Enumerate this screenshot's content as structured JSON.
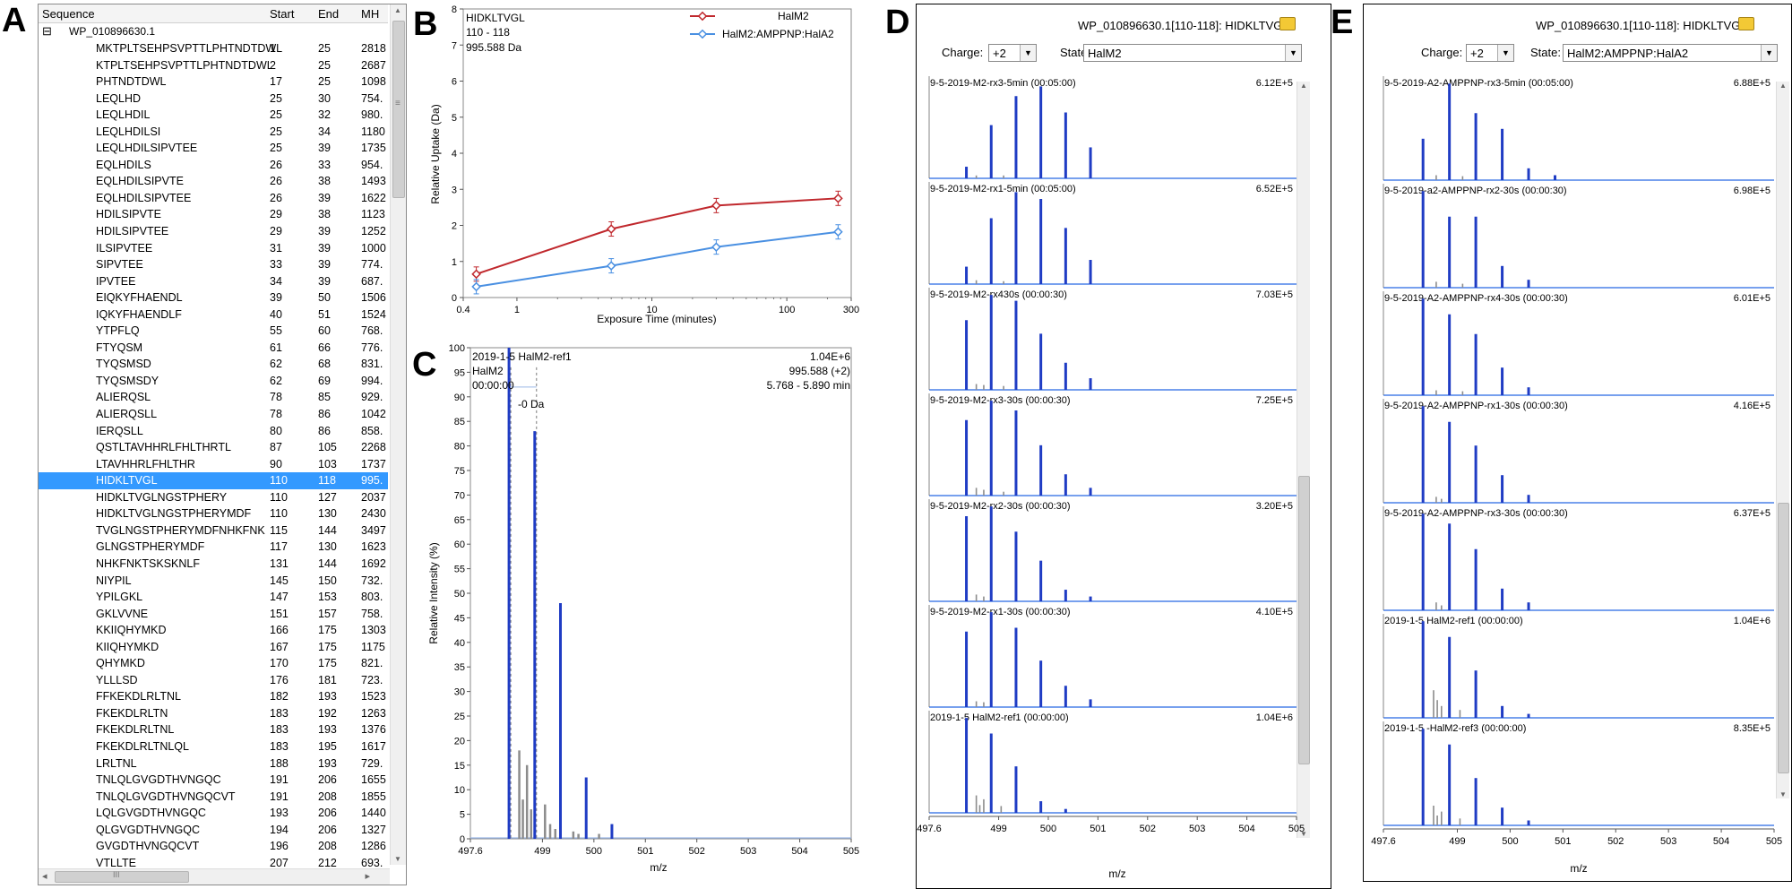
{
  "panel_labels": {
    "a": "A",
    "b": "B",
    "c": "C",
    "d": "D",
    "e": "E"
  },
  "panelA": {
    "columns": [
      "Sequence",
      "Start",
      "End",
      "MH"
    ],
    "root_expander": "⊟",
    "root": "WP_010896630.1",
    "scroll_up": "▲",
    "scroll_down": "▼",
    "scroll_left": "◂",
    "scroll_right": "▸",
    "grip": "≡",
    "grip_h": "III",
    "rows": [
      [
        "MKTPLTSEHPSVPTTLPHTNDTDWL",
        "1",
        "25",
        "2818"
      ],
      [
        "KTPLTSEHPSVPTTLPHTNDTDWL",
        "2",
        "25",
        "2687"
      ],
      [
        "PHTNDTDWL",
        "17",
        "25",
        "1098"
      ],
      [
        "LEQLHD",
        "25",
        "30",
        "754."
      ],
      [
        "LEQLHDIL",
        "25",
        "32",
        "980."
      ],
      [
        "LEQLHDILSI",
        "25",
        "34",
        "1180"
      ],
      [
        "LEQLHDILSIPVTEE",
        "25",
        "39",
        "1735"
      ],
      [
        "EQLHDILS",
        "26",
        "33",
        "954."
      ],
      [
        "EQLHDILSIPVTE",
        "26",
        "38",
        "1493"
      ],
      [
        "EQLHDILSIPVTEE",
        "26",
        "39",
        "1622"
      ],
      [
        "HDILSIPVTE",
        "29",
        "38",
        "1123"
      ],
      [
        "HDILSIPVTEE",
        "29",
        "39",
        "1252"
      ],
      [
        "ILSIPVTEE",
        "31",
        "39",
        "1000"
      ],
      [
        "SIPVTEE",
        "33",
        "39",
        "774."
      ],
      [
        "IPVTEE",
        "34",
        "39",
        "687."
      ],
      [
        "EIQKYFHAENDL",
        "39",
        "50",
        "1506"
      ],
      [
        "IQKYFHAENDLF",
        "40",
        "51",
        "1524"
      ],
      [
        "YTPFLQ",
        "55",
        "60",
        "768."
      ],
      [
        "FTYQSM",
        "61",
        "66",
        "776."
      ],
      [
        "TYQSMSD",
        "62",
        "68",
        "831."
      ],
      [
        "TYQSMSDY",
        "62",
        "69",
        "994."
      ],
      [
        "ALIERQSL",
        "78",
        "85",
        "929."
      ],
      [
        "ALIERQSLL",
        "78",
        "86",
        "1042"
      ],
      [
        "IERQSLL",
        "80",
        "86",
        "858."
      ],
      [
        "QSTLTAVHHRLFHLTHRTL",
        "87",
        "105",
        "2268"
      ],
      [
        "LTAVHHRLFHLTHR",
        "90",
        "103",
        "1737"
      ],
      [
        "HIDKLTVGL",
        "110",
        "118",
        "995."
      ],
      [
        "HIDKLTVGLNGSTPHERY",
        "110",
        "127",
        "2037"
      ],
      [
        "HIDKLTVGLNGSTPHERYMDF",
        "110",
        "130",
        "2430"
      ],
      [
        "TVGLNGSTPHERYMDFNHKFNK",
        "115",
        "144",
        "3497"
      ],
      [
        "GLNGSTPHERYMDF",
        "117",
        "130",
        "1623"
      ],
      [
        "NHKFNKTSKSKNLF",
        "131",
        "144",
        "1692"
      ],
      [
        "NIYPIL",
        "145",
        "150",
        "732."
      ],
      [
        "YPILGKL",
        "147",
        "153",
        "803."
      ],
      [
        "GKLVVNE",
        "151",
        "157",
        "758."
      ],
      [
        "KKIIQHYMKD",
        "166",
        "175",
        "1303"
      ],
      [
        "KIIQHYMKD",
        "167",
        "175",
        "1175"
      ],
      [
        "QHYMKD",
        "170",
        "175",
        "821."
      ],
      [
        "YLLLSD",
        "176",
        "181",
        "723."
      ],
      [
        "FFKEKDLRLTNL",
        "182",
        "193",
        "1523"
      ],
      [
        "FKEKDLRLTN",
        "183",
        "192",
        "1263"
      ],
      [
        "FKEKDLRLTNL",
        "183",
        "193",
        "1376"
      ],
      [
        "FKEKDLRLTNLQL",
        "183",
        "195",
        "1617"
      ],
      [
        "LRLTNL",
        "188",
        "193",
        "729."
      ],
      [
        "TNLQLGVGDTHVNGQC",
        "191",
        "206",
        "1655"
      ],
      [
        "TNLQLGVGDTHVNGQCVT",
        "191",
        "208",
        "1855"
      ],
      [
        "LQLGVGDTHVNGQC",
        "193",
        "206",
        "1440"
      ],
      [
        "QLGVGDTHVNGQC",
        "194",
        "206",
        "1327"
      ],
      [
        "GVGDTHVNGQCVT",
        "196",
        "208",
        "1286"
      ],
      [
        "VTLLTE",
        "207",
        "212",
        "693."
      ]
    ],
    "selected_row_index": 26
  },
  "panelB": {
    "peptide": "HIDKLTVGL",
    "range": "110 - 118",
    "mass": "995.588 Da",
    "xlabel": "Exposure Time (minutes)",
    "ylabel": "Relative Uptake (Da)"
  },
  "panelC": {
    "title": "2019-1-5 HalM2-ref1",
    "state": "HalM2",
    "time": "00:00:00",
    "max_intensity": "1.04E+6",
    "mz_charge": "995.588 (+2)",
    "rt_range": "5.768 - 5.890 min",
    "shift_label": "-0 Da",
    "xlabel": "m/z",
    "ylabel": "Relative Intensity (%)"
  },
  "panelD": {
    "header": "WP_010896630.1[110-118]: HIDKLTVGL",
    "charge_label": "Charge:",
    "charge_value": "+2",
    "state_label": "State:",
    "state_value": "HalM2",
    "xlabel": "m/z",
    "xticks": [
      "497.6",
      "499",
      "500",
      "501",
      "502",
      "503",
      "504",
      "505"
    ],
    "traces": [
      {
        "label": "9-5-2019-M2-rx3-5min (00:05:00)",
        "max": "6.12E+5"
      },
      {
        "label": "9-5-2019-M2-rx1-5min (00:05:00)",
        "max": "6.52E+5"
      },
      {
        "label": "9-5-2019-M2-rx430s (00:00:30)",
        "max": "7.03E+5"
      },
      {
        "label": "9-5-2019-M2-rx3-30s (00:00:30)",
        "max": "7.25E+5"
      },
      {
        "label": "9-5-2019-M2-rx2-30s (00:00:30)",
        "max": "3.20E+5"
      },
      {
        "label": "9-5-2019-M2-rx1-30s (00:00:30)",
        "max": "4.10E+5"
      },
      {
        "label": "2019-1-5 HalM2-ref1 (00:00:00)",
        "max": "1.04E+6"
      }
    ]
  },
  "panelE": {
    "header": "WP_010896630.1[110-118]: HIDKLTVGL",
    "charge_label": "Charge:",
    "charge_value": "+2",
    "state_label": "State:",
    "state_value": "HalM2:AMPPNP:HalA2",
    "xlabel": "m/z",
    "xticks": [
      "497.6",
      "499",
      "500",
      "501",
      "502",
      "503",
      "504",
      "505"
    ],
    "traces": [
      {
        "label": "9-5-2019-A2-AMPPNP-rx3-5min (00:05:00)",
        "max": "6.88E+5"
      },
      {
        "label": "9-5-2019-a2-AMPPNP-rx2-30s (00:00:30)",
        "max": "6.98E+5"
      },
      {
        "label": "9-5-2019-A2-AMPPNP-rx4-30s (00:00:30)",
        "max": "6.01E+5"
      },
      {
        "label": "9-5-2019-A2-AMPPNP-rx1-30s (00:00:30)",
        "max": "4.16E+5"
      },
      {
        "label": "9-5-2019-A2-AMPPNP-rx3-30s (00:00:30)",
        "max": "6.37E+5"
      },
      {
        "label": "2019-1-5 HalM2-ref1 (00:00:00)",
        "max": "1.04E+6"
      },
      {
        "label": "2019-1-5 -HalM2-ref3 (00:00:00)",
        "max": "8.35E+5"
      }
    ]
  },
  "chart_data": [
    {
      "type": "line",
      "title": "HIDKLTVGL",
      "xlabel": "Exposure Time (minutes)",
      "ylabel": "Relative Uptake (Da)",
      "xscale": "log",
      "xlim": [
        0.4,
        300
      ],
      "ylim": [
        0,
        8
      ],
      "xticks": [
        "0.4",
        "1",
        "10",
        "100",
        "300"
      ],
      "yticks": [
        "0",
        "1",
        "2",
        "3",
        "4",
        "5",
        "6",
        "7",
        "8"
      ],
      "legend_position": "top-right",
      "series": [
        {
          "name": "HalM2",
          "color": "#c0282d",
          "x": [
            0.5,
            5,
            30,
            240
          ],
          "y": [
            0.65,
            1.9,
            2.55,
            2.75
          ]
        },
        {
          "name": "HalM2:AMPPNP:HalA2",
          "color": "#4a90e2",
          "x": [
            0.5,
            5,
            30,
            240
          ],
          "y": [
            0.3,
            0.88,
            1.4,
            1.82
          ]
        }
      ]
    },
    {
      "type": "bar",
      "title": "2019-1-5 HalM2-ref1",
      "xlabel": "m/z",
      "ylabel": "Relative Intensity (%)",
      "xlim": [
        497.6,
        505
      ],
      "ylim": [
        0,
        100
      ],
      "xticks": [
        "497.6",
        "499",
        "500",
        "501",
        "502",
        "503",
        "504",
        "505"
      ],
      "yticks": [
        "0",
        "5",
        "10",
        "15",
        "20",
        "25",
        "30",
        "35",
        "40",
        "45",
        "50",
        "55",
        "60",
        "65",
        "70",
        "75",
        "80",
        "85",
        "90",
        "95",
        "100"
      ],
      "series": [
        {
          "name": "isotope peaks",
          "color": "#1f3cc4",
          "x": [
            498.35,
            498.85,
            499.35,
            499.85,
            500.35
          ],
          "y": [
            100,
            83,
            48,
            12.5,
            3
          ]
        },
        {
          "name": "other peaks",
          "color": "#8c8c8c",
          "x": [
            498.55,
            498.62,
            498.7,
            498.78,
            499.05,
            499.15,
            499.25,
            499.6,
            499.7,
            500.1
          ],
          "y": [
            18,
            8,
            15,
            6,
            7,
            3,
            2,
            1.5,
            1,
            1
          ]
        }
      ]
    }
  ]
}
